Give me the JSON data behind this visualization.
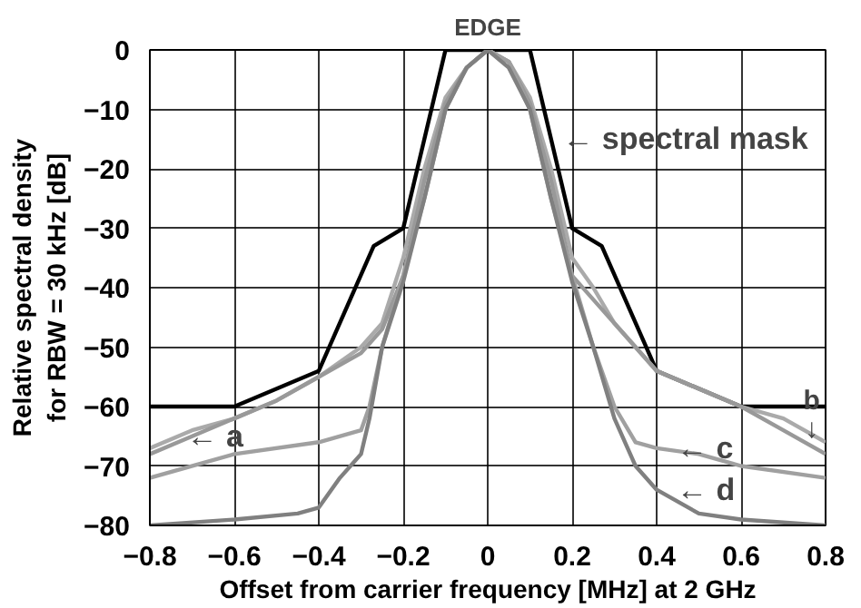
{
  "chart_data": {
    "type": "line",
    "title": "EDGE",
    "xlabel": "Offset from carrier frequency [MHz] at 2 GHz",
    "ylabel": "Relative spectral density\nfor RBW = 30 kHz [dB]",
    "xlim": [
      -0.8,
      0.8
    ],
    "ylim": [
      -80,
      0
    ],
    "xticks": [
      {
        "value": -0.8,
        "label": "−0.8"
      },
      {
        "value": -0.6,
        "label": "−0.6"
      },
      {
        "value": -0.4,
        "label": "−0.4"
      },
      {
        "value": -0.2,
        "label": "−0.2"
      },
      0,
      0.2,
      0.4,
      0.6,
      0.8
    ],
    "yticks": [
      {
        "value": -80,
        "label": "−80"
      },
      {
        "value": -70,
        "label": "−70"
      },
      {
        "value": -60,
        "label": "−60"
      },
      {
        "value": -50,
        "label": "−50"
      },
      {
        "value": -40,
        "label": "−40"
      },
      {
        "value": -30,
        "label": "−30"
      },
      {
        "value": -20,
        "label": "−20"
      },
      {
        "value": -10,
        "label": "−10"
      },
      0
    ],
    "grid": true,
    "marker": "none",
    "line_style": "solid",
    "series": [
      {
        "color": "#000000",
        "x": [
          -0.8,
          -0.6,
          -0.4,
          -0.27,
          -0.2,
          -0.1,
          0.1,
          0.2,
          0.27,
          0.4,
          0.6,
          0.8
        ],
        "values": [
          -60,
          -60,
          -54,
          -33,
          -30,
          0,
          0,
          -30,
          -33,
          -54,
          -60,
          -60
        ]
      },
      {
        "color": "#aaaaaa",
        "x": [
          -0.8,
          -0.7,
          -0.6,
          -0.5,
          -0.4,
          -0.3,
          -0.25,
          -0.2,
          -0.15,
          -0.1,
          -0.05,
          0,
          0.05,
          0.1,
          0.15,
          0.2,
          0.25,
          0.3,
          0.4,
          0.5,
          0.6,
          0.7,
          0.8
        ],
        "values": [
          -67,
          -64,
          -62,
          -59,
          -55,
          -50,
          -46,
          -35,
          -20,
          -8,
          -3,
          0,
          -2,
          -8,
          -20,
          -35,
          -40,
          -46,
          -54,
          -57,
          -60,
          -62,
          -66
        ]
      },
      {
        "color": "#999999",
        "x": [
          -0.8,
          -0.7,
          -0.6,
          -0.5,
          -0.4,
          -0.3,
          -0.25,
          -0.2,
          -0.15,
          -0.1,
          -0.05,
          0,
          0.05,
          0.1,
          0.15,
          0.2,
          0.25,
          0.3,
          0.4,
          0.5,
          0.6,
          0.7,
          0.8
        ],
        "values": [
          -68,
          -65,
          -62,
          -59,
          -55,
          -51,
          -47,
          -38,
          -22,
          -9,
          -3,
          0,
          -2,
          -9,
          -22,
          -38,
          -42,
          -46,
          -54,
          -57,
          -60,
          -64,
          -68
        ]
      },
      {
        "color": "#a0a0a0",
        "x": [
          -0.8,
          -0.6,
          -0.4,
          -0.3,
          -0.28,
          -0.25,
          -0.2,
          -0.15,
          -0.1,
          -0.05,
          0,
          0.05,
          0.1,
          0.15,
          0.2,
          0.25,
          0.3,
          0.35,
          0.4,
          0.5,
          0.6,
          0.8
        ],
        "values": [
          -72,
          -68,
          -66,
          -64,
          -60,
          -50,
          -38,
          -25,
          -10,
          -3,
          0,
          -2,
          -10,
          -25,
          -38,
          -50,
          -60,
          -66,
          -67,
          -68,
          -70,
          -72
        ]
      },
      {
        "color": "#808080",
        "x": [
          -0.8,
          -0.6,
          -0.45,
          -0.4,
          -0.35,
          -0.3,
          -0.28,
          -0.25,
          -0.2,
          -0.15,
          -0.1,
          -0.05,
          0,
          0.05,
          0.1,
          0.15,
          0.2,
          0.25,
          0.3,
          0.35,
          0.4,
          0.5,
          0.6,
          0.8
        ],
        "values": [
          -80,
          -79,
          -78,
          -77,
          -72,
          -68,
          -62,
          -50,
          -39,
          -25,
          -10,
          -3,
          0,
          -3,
          -10,
          -25,
          -39,
          -50,
          -62,
          -70,
          -74,
          -78,
          -79,
          -80
        ]
      }
    ],
    "annotations": [
      {
        "text": "← spectral mask",
        "x": 0.16,
        "y": -15
      },
      {
        "text": "← a",
        "x": -0.73,
        "y": -65
      },
      {
        "text": "b\n↓",
        "x": 0.78,
        "y": -67
      },
      {
        "text": "← c",
        "x": 0.43,
        "y": -67
      },
      {
        "text": "← d",
        "x": 0.43,
        "y": -74
      }
    ]
  }
}
